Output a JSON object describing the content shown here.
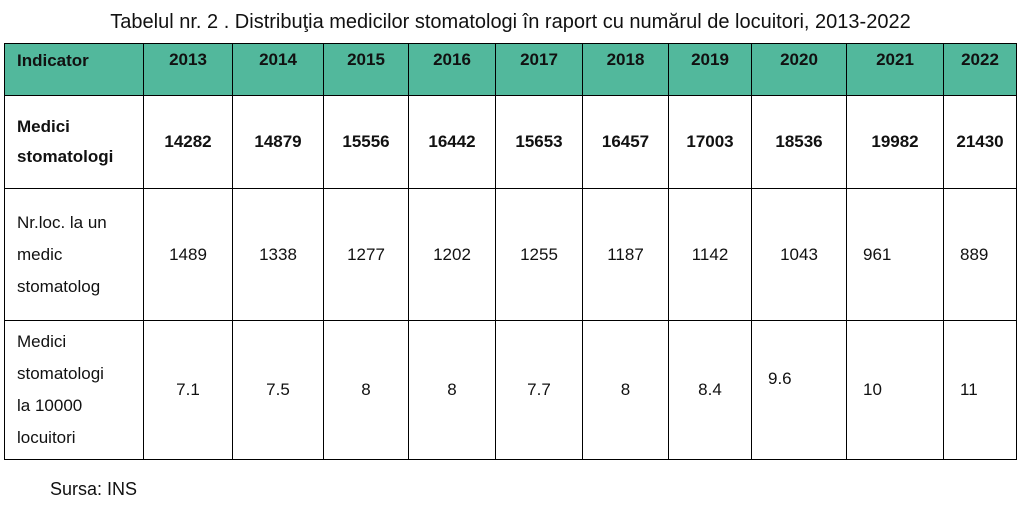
{
  "caption": "Tabelul nr. 2 . Distribuţia medicilor stomatologi în raport cu numărul de locuitori, 2013-2022",
  "table": {
    "header_label": "Indicator",
    "years": [
      "2013",
      "2014",
      "2015",
      "2016",
      "2017",
      "2018",
      "2019",
      "2020",
      "2021",
      "2022"
    ],
    "header_color": "#52b89c",
    "rows": [
      {
        "label_lines": [
          "Medici",
          "stomatologi"
        ],
        "values": [
          "14282",
          "14879",
          "15556",
          "16442",
          "15653",
          "16457",
          "17003",
          "18536",
          "19982",
          "21430"
        ]
      },
      {
        "label_lines": [
          "Nr.loc. la un",
          "medic",
          "stomatolog"
        ],
        "values": [
          "1489",
          "1338",
          "1277",
          "1202",
          "1255",
          "1187",
          "1142",
          "1043",
          "961",
          "889"
        ]
      },
      {
        "label_lines": [
          "Medici",
          "stomatologi",
          "la 10000",
          "locuitori"
        ],
        "values": [
          "7.1",
          "7.5",
          "8",
          "8",
          "7.7",
          "8",
          "8.4",
          "9.6",
          "10",
          "11"
        ]
      }
    ]
  },
  "source": "Sursa: INS"
}
